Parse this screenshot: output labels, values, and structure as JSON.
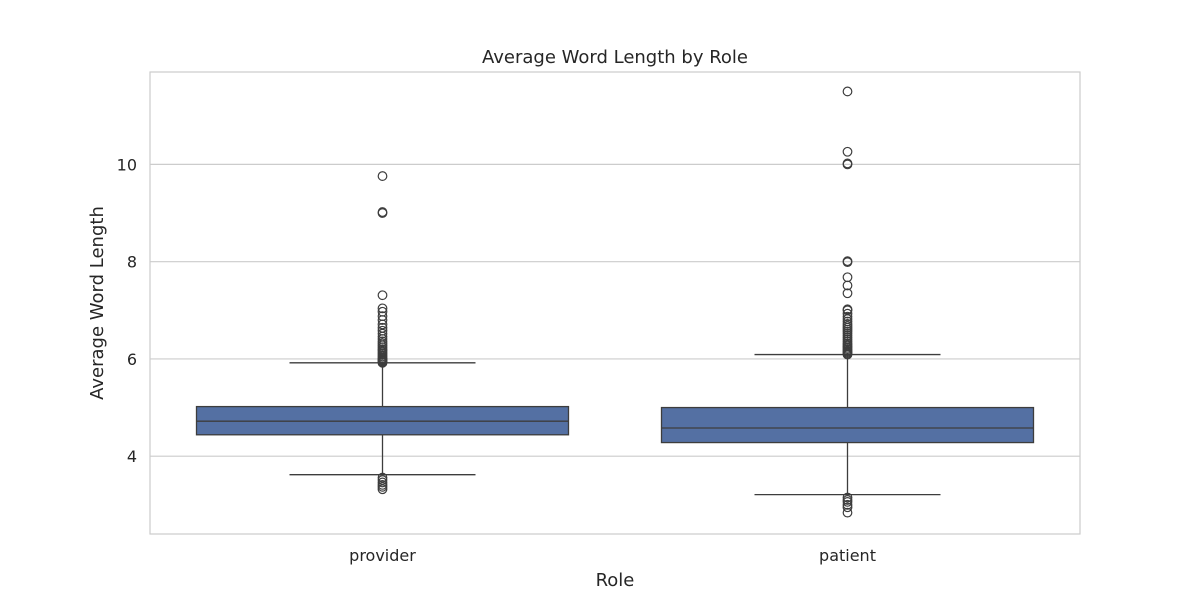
{
  "chart_data": {
    "type": "box",
    "title": "Average Word Length by Role",
    "xlabel": "Role",
    "ylabel": "Average Word Length",
    "ylim": [
      2.4,
      11.9
    ],
    "yticks": [
      4,
      6,
      8,
      10
    ],
    "grid": true,
    "categories": [
      "provider",
      "patient"
    ],
    "box_color": "#5470A3",
    "line_color": "#3d3d3d",
    "grid_color": "#cccccc",
    "series": [
      {
        "category": "provider",
        "whisker_low": 3.62,
        "q1": 4.44,
        "median": 4.72,
        "q3": 5.02,
        "whisker_high": 5.92,
        "outliers_low": [
          3.56,
          3.51,
          3.46,
          3.41,
          3.37,
          3.32
        ],
        "outliers_high": [
          5.92,
          5.94,
          5.96,
          5.98,
          6.0,
          6.02,
          6.05,
          6.08,
          6.11,
          6.14,
          6.17,
          6.2,
          6.24,
          6.28,
          6.32,
          6.36,
          6.41,
          6.46,
          6.52,
          6.58,
          6.64,
          6.71,
          6.8,
          6.88,
          6.97,
          7.04,
          7.31,
          9.0,
          9.02,
          9.76
        ]
      },
      {
        "category": "patient",
        "whisker_low": 3.21,
        "q1": 4.28,
        "median": 4.58,
        "q3": 5.0,
        "whisker_high": 6.09,
        "outliers_low": [
          3.15,
          3.1,
          3.06,
          3.0,
          2.95,
          2.84
        ],
        "outliers_high": [
          6.09,
          6.11,
          6.13,
          6.15,
          6.17,
          6.2,
          6.23,
          6.26,
          6.29,
          6.32,
          6.36,
          6.4,
          6.44,
          6.48,
          6.52,
          6.56,
          6.6,
          6.64,
          6.68,
          6.72,
          6.77,
          6.82,
          6.87,
          6.93,
          7.0,
          7.02,
          7.35,
          7.51,
          7.68,
          7.99,
          8.01,
          10.0,
          10.02,
          10.26,
          11.5
        ]
      }
    ]
  }
}
